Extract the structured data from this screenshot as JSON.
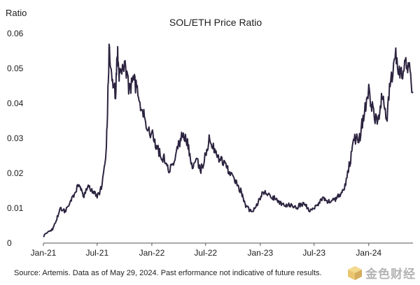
{
  "chart_data": {
    "type": "line",
    "title": "SOL/ETH Price Ratio",
    "ylabel": "Ratio",
    "xlabel": "",
    "ylim": [
      0,
      0.06
    ],
    "y_ticks": [
      "0",
      "0.01",
      "0.02",
      "0.03",
      "0.04",
      "0.05",
      "0.06"
    ],
    "y_tick_values": [
      0,
      0.01,
      0.02,
      0.03,
      0.04,
      0.05,
      0.06
    ],
    "x_ticks": [
      "Jan-21",
      "Jul-21",
      "Jan-22",
      "Jul-22",
      "Jan-23",
      "Jul-23",
      "Jan-24"
    ],
    "x_tick_dates": [
      "2021-01-01",
      "2021-07-01",
      "2022-01-01",
      "2022-07-01",
      "2023-01-01",
      "2023-07-01",
      "2024-01-01"
    ],
    "xlim": [
      "2021-01-01",
      "2024-05-29"
    ],
    "grid": false,
    "line_color": "#2d2440",
    "series": [
      {
        "x": [
          "2021-01-01",
          "2021-01-15",
          "2021-02-01",
          "2021-02-15",
          "2021-03-01",
          "2021-03-15",
          "2021-04-01",
          "2021-04-15",
          "2021-05-01",
          "2021-05-15",
          "2021-06-01",
          "2021-06-15",
          "2021-07-01",
          "2021-07-15",
          "2021-08-01",
          "2021-08-10",
          "2021-08-20",
          "2021-09-01",
          "2021-09-08",
          "2021-09-15",
          "2021-10-01",
          "2021-10-15",
          "2021-11-01",
          "2021-11-15",
          "2021-12-01",
          "2021-12-15",
          "2022-01-01",
          "2022-01-15",
          "2022-02-01",
          "2022-02-15",
          "2022-03-01",
          "2022-03-15",
          "2022-04-01",
          "2022-04-15",
          "2022-05-01",
          "2022-05-15",
          "2022-06-01",
          "2022-06-15",
          "2022-07-01",
          "2022-07-15",
          "2022-08-01",
          "2022-08-15",
          "2022-09-01",
          "2022-09-15",
          "2022-10-01",
          "2022-10-15",
          "2022-11-01",
          "2022-11-10",
          "2022-11-20",
          "2022-12-01",
          "2022-12-15",
          "2023-01-01",
          "2023-01-15",
          "2023-02-01",
          "2023-02-15",
          "2023-03-01",
          "2023-03-15",
          "2023-04-01",
          "2023-04-15",
          "2023-05-01",
          "2023-05-15",
          "2023-06-01",
          "2023-06-15",
          "2023-07-01",
          "2023-07-15",
          "2023-08-01",
          "2023-08-15",
          "2023-09-01",
          "2023-09-15",
          "2023-10-01",
          "2023-10-15",
          "2023-11-01",
          "2023-11-15",
          "2023-12-01",
          "2023-12-15",
          "2024-01-01",
          "2024-01-15",
          "2024-02-01",
          "2024-02-15",
          "2024-03-01",
          "2024-03-15",
          "2024-04-01",
          "2024-04-15",
          "2024-05-01",
          "2024-05-15",
          "2024-05-29"
        ],
        "values": [
          0.002,
          0.003,
          0.004,
          0.007,
          0.01,
          0.009,
          0.012,
          0.014,
          0.017,
          0.013,
          0.016,
          0.015,
          0.013,
          0.016,
          0.027,
          0.055,
          0.048,
          0.043,
          0.055,
          0.047,
          0.052,
          0.045,
          0.046,
          0.043,
          0.038,
          0.032,
          0.031,
          0.028,
          0.025,
          0.024,
          0.021,
          0.022,
          0.028,
          0.031,
          0.029,
          0.022,
          0.024,
          0.021,
          0.025,
          0.031,
          0.026,
          0.024,
          0.023,
          0.021,
          0.019,
          0.017,
          0.014,
          0.011,
          0.01,
          0.009,
          0.01,
          0.013,
          0.015,
          0.014,
          0.013,
          0.012,
          0.011,
          0.011,
          0.011,
          0.01,
          0.011,
          0.011,
          0.009,
          0.01,
          0.011,
          0.013,
          0.012,
          0.012,
          0.013,
          0.014,
          0.017,
          0.024,
          0.03,
          0.03,
          0.037,
          0.044,
          0.038,
          0.034,
          0.042,
          0.035,
          0.047,
          0.054,
          0.047,
          0.052,
          0.05,
          0.043
        ]
      }
    ]
  },
  "source_note": "Source: Artemis. Data as of May 29, 2024. Past erformance not indicative of future results.",
  "watermark": {
    "text": "金色财经",
    "icon": "golden-cube-logo-icon"
  }
}
